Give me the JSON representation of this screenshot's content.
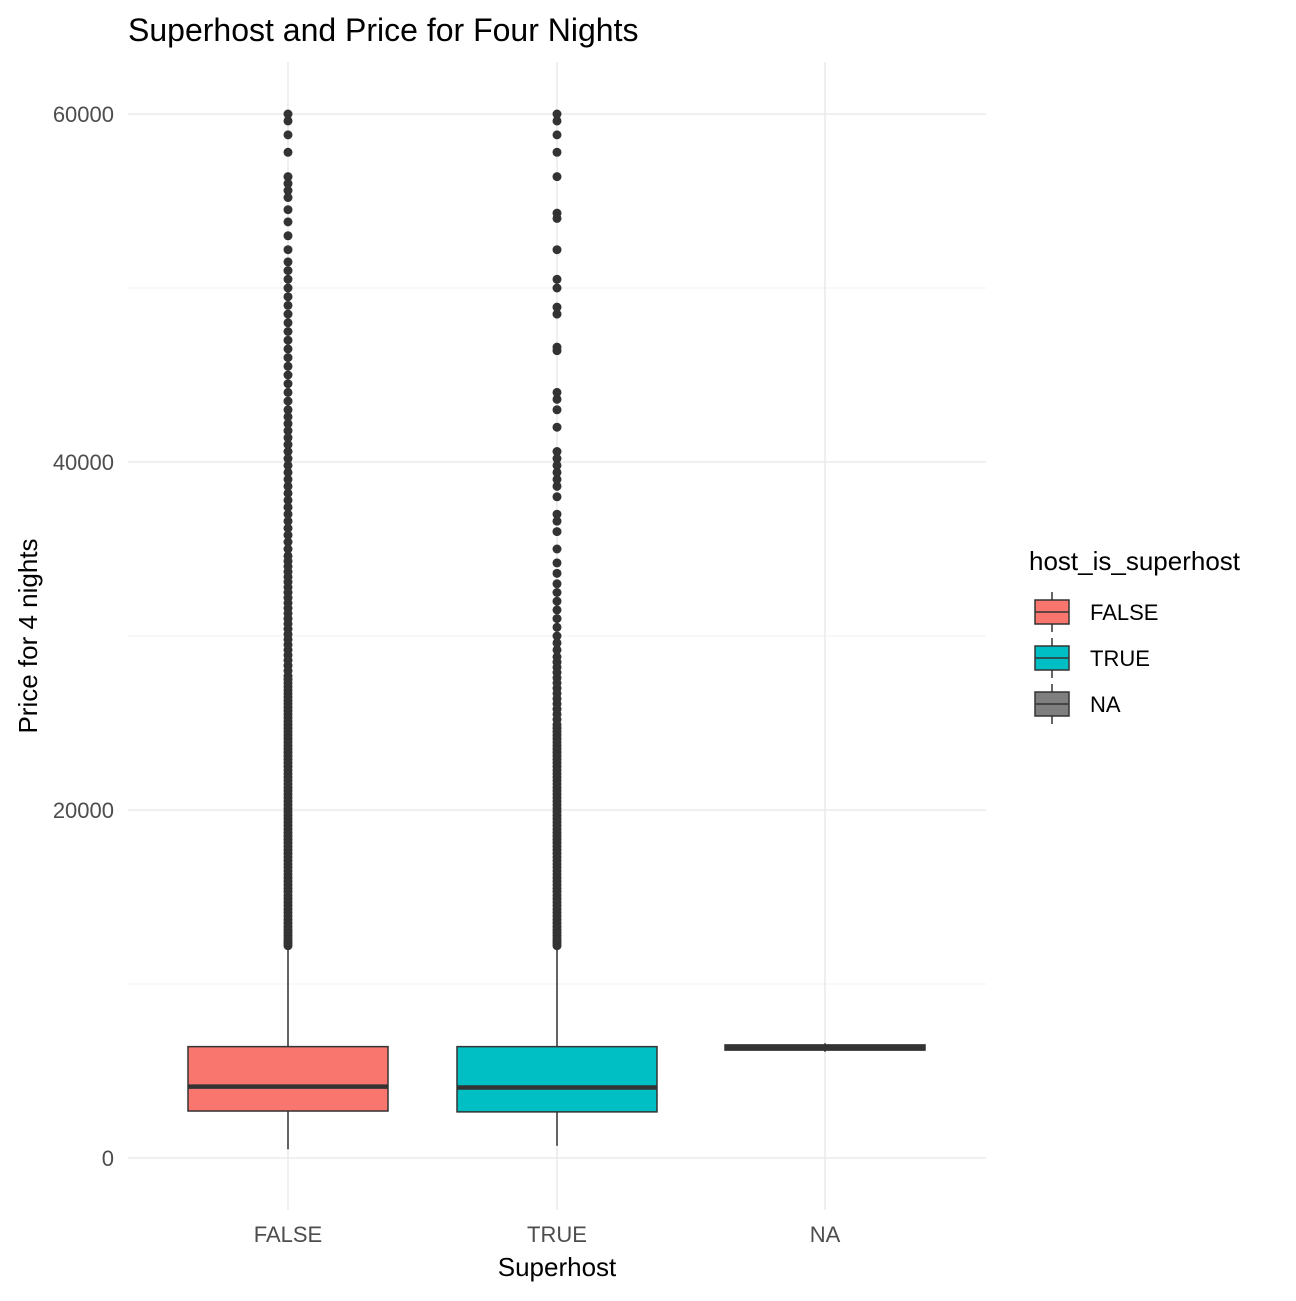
{
  "chart_data": {
    "type": "boxplot",
    "title": "Superhost and Price for Four Nights",
    "xlabel": "Superhost",
    "ylabel": "Price for 4 nights",
    "categories": [
      "FALSE",
      "TRUE",
      "NA"
    ],
    "ylim": [
      -3000,
      63000
    ],
    "y_ticks": [
      0,
      20000,
      40000,
      60000
    ],
    "y_tick_labels": [
      "0",
      "20000",
      "40000",
      "60000"
    ],
    "grid": true,
    "legend": {
      "title": "host_is_superhost",
      "position": "right",
      "entries": [
        {
          "label": "FALSE",
          "color": "#F8766D"
        },
        {
          "label": "TRUE",
          "color": "#00BFC4"
        },
        {
          "label": "NA",
          "color": "#7F7F7F"
        }
      ]
    },
    "boxes": [
      {
        "category": "FALSE",
        "color": "#F8766D",
        "whisker_low": 500,
        "q1": 2700,
        "median": 4100,
        "q3": 6400,
        "whisker_high": 12000
      },
      {
        "category": "TRUE",
        "color": "#00BFC4",
        "whisker_low": 700,
        "q1": 2650,
        "median": 4050,
        "q3": 6400,
        "whisker_high": 12000
      },
      {
        "category": "NA",
        "color": "#7F7F7F",
        "whisker_low": 6100,
        "q1": 6200,
        "median": 6350,
        "q3": 6500,
        "whisker_high": 6600
      }
    ],
    "outliers": [
      {
        "category": "FALSE",
        "values": [
          12200,
          12350,
          12500,
          12650,
          12800,
          12950,
          13100,
          13300,
          13500,
          13700,
          13900,
          14100,
          14300,
          14500,
          14700,
          14900,
          15100,
          15300,
          15500,
          15700,
          15900,
          16100,
          16300,
          16500,
          16700,
          16900,
          17100,
          17300,
          17500,
          17700,
          17900,
          18100,
          18300,
          18500,
          18700,
          18900,
          19100,
          19300,
          19500,
          19700,
          19900,
          20100,
          20300,
          20500,
          20700,
          20900,
          21100,
          21300,
          21500,
          21700,
          21900,
          22100,
          22300,
          22500,
          22700,
          22900,
          23100,
          23300,
          23500,
          23700,
          23900,
          24100,
          24300,
          24500,
          24700,
          24900,
          25100,
          25300,
          25500,
          25700,
          25900,
          26100,
          26300,
          26500,
          26700,
          26900,
          27100,
          27300,
          27500,
          27700,
          28000,
          28300,
          28600,
          28900,
          29200,
          29500,
          29800,
          30100,
          30400,
          30700,
          31000,
          31300,
          31600,
          31900,
          32200,
          32500,
          32800,
          33100,
          33400,
          33700,
          34000,
          34300,
          34600,
          35000,
          35400,
          35800,
          36200,
          36600,
          37000,
          37400,
          37800,
          38200,
          38600,
          39000,
          39400,
          39800,
          40200,
          40600,
          41000,
          41400,
          41800,
          42200,
          42600,
          43000,
          43500,
          44000,
          44500,
          45000,
          45500,
          46000,
          46500,
          47000,
          47500,
          48000,
          48500,
          49000,
          49500,
          50000,
          50500,
          51000,
          51500,
          52200,
          53000,
          53800,
          54500,
          55200,
          55600,
          56000,
          56400,
          57800,
          58800,
          59600,
          60000
        ]
      },
      {
        "category": "TRUE",
        "values": [
          12200,
          12350,
          12500,
          12650,
          12800,
          12950,
          13100,
          13300,
          13500,
          13700,
          13900,
          14100,
          14300,
          14500,
          14700,
          14900,
          15100,
          15300,
          15500,
          15700,
          15900,
          16100,
          16300,
          16500,
          16700,
          16900,
          17100,
          17300,
          17500,
          17700,
          17900,
          18100,
          18300,
          18500,
          18700,
          18900,
          19100,
          19300,
          19500,
          19700,
          19900,
          20100,
          20300,
          20500,
          20700,
          20900,
          21100,
          21300,
          21500,
          21700,
          21900,
          22100,
          22300,
          22500,
          22700,
          22900,
          23100,
          23300,
          23500,
          23700,
          23900,
          24100,
          24300,
          24500,
          24700,
          24900,
          25200,
          25500,
          25800,
          26100,
          26400,
          26700,
          27000,
          27300,
          27600,
          27900,
          28200,
          28500,
          28800,
          29200,
          29600,
          30000,
          30500,
          31000,
          31500,
          32000,
          32500,
          33000,
          33600,
          34200,
          35000,
          36000,
          36600,
          37000,
          38000,
          38600,
          39000,
          39400,
          39800,
          40200,
          40600,
          42000,
          43000,
          43600,
          44000,
          46400,
          46600,
          48500,
          48900,
          50000,
          50500,
          52200,
          54000,
          54300,
          56400,
          57800,
          58800,
          59600,
          60000
        ]
      }
    ]
  }
}
